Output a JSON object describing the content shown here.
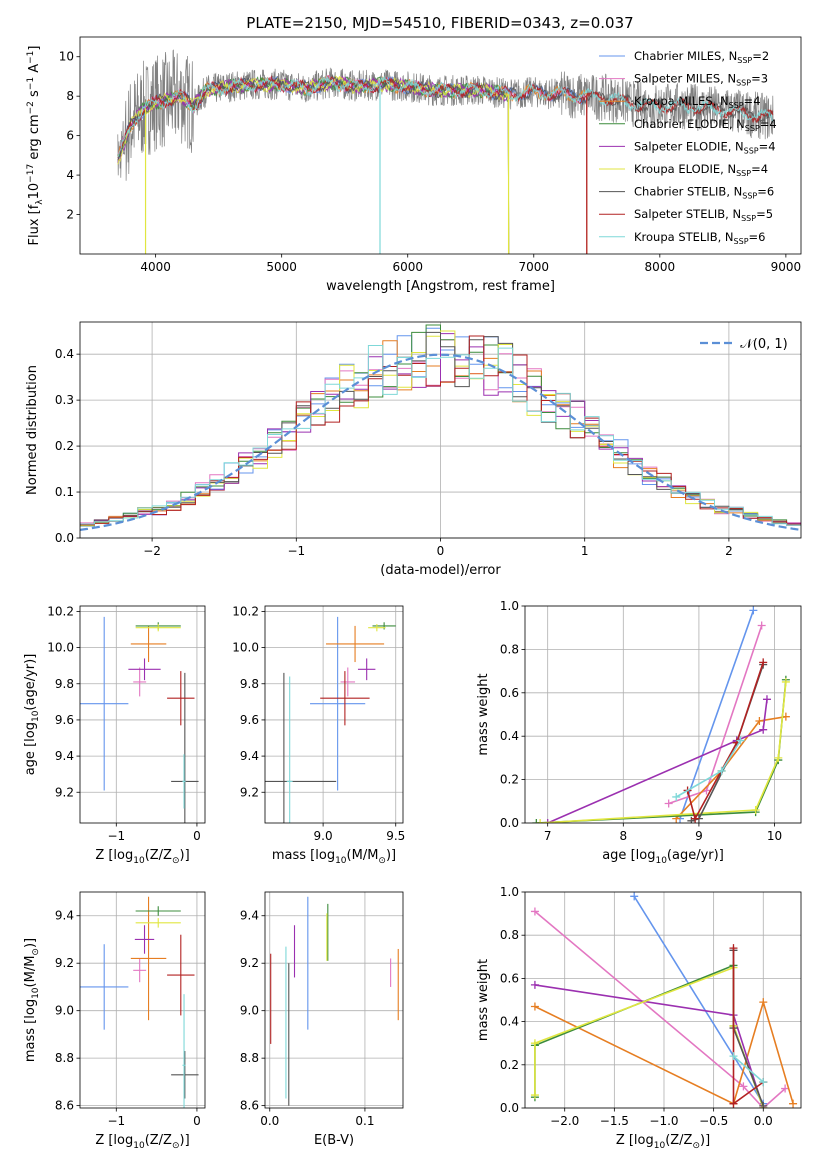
{
  "figure": {
    "title": "PLATE=2150, MJD=54510, FIBERID=0343, z=0.037"
  },
  "colors": {
    "Chabrier MILES": "#6495ed",
    "Salpeter MILES": "#e377c2",
    "Kroupa MILES": "#e67e22",
    "Chabrier ELODIE": "#3c8c3c",
    "Salpeter ELODIE": "#9b30b0",
    "Kroupa ELODIE": "#e0e640",
    "Chabrier STELIB": "#555555",
    "Salpeter STELIB": "#b22222",
    "Kroupa STELIB": "#7fd8d8",
    "spectrum": "#808080",
    "normal_curve": "#5b8fd6"
  },
  "chart_data": [
    {
      "id": "spectrum",
      "type": "line",
      "xlabel": "wavelength [Angstrom, rest frame]",
      "ylabel": "Flux [f$_\\lambda$10$^{-17}$ erg cm$^{-2}$ s$^{-1}$ A$^{-1}$]",
      "xlim": [
        3400,
        9120
      ],
      "ylim": [
        0,
        11
      ],
      "xticks": [
        4000,
        5000,
        6000,
        7000,
        8000,
        9000
      ],
      "yticks": [
        2,
        4,
        6,
        8,
        10
      ],
      "legend_position": "top-right",
      "legend": [
        {
          "name": "Chabrier MILES",
          "nssp": "2"
        },
        {
          "name": "Salpeter MILES",
          "nssp": "3"
        },
        {
          "name": "Kroupa MILES",
          "nssp": "4"
        },
        {
          "name": "Chabrier ELODIE",
          "nssp": "4"
        },
        {
          "name": "Salpeter ELODIE",
          "nssp": "4"
        },
        {
          "name": "Kroupa ELODIE",
          "nssp": "4"
        },
        {
          "name": "Chabrier STELIB",
          "nssp": "6"
        },
        {
          "name": "Salpeter STELIB",
          "nssp": "5"
        },
        {
          "name": "Kroupa STELIB",
          "nssp": "6"
        }
      ],
      "data_range": [
        3700,
        8900
      ],
      "model_continuum": [
        [
          3700,
          4.8
        ],
        [
          3800,
          6.5
        ],
        [
          3900,
          7.3
        ],
        [
          4000,
          7.7
        ],
        [
          4100,
          7.8
        ],
        [
          4200,
          8.0
        ],
        [
          4300,
          7.5
        ],
        [
          4400,
          8.3
        ],
        [
          4600,
          8.5
        ],
        [
          4800,
          8.6
        ],
        [
          5000,
          8.6
        ],
        [
          5200,
          8.4
        ],
        [
          5400,
          8.7
        ],
        [
          5600,
          8.5
        ],
        [
          5800,
          8.6
        ],
        [
          6000,
          8.5
        ],
        [
          6200,
          8.3
        ],
        [
          6400,
          8.3
        ],
        [
          6600,
          8.3
        ],
        [
          6800,
          8.1
        ],
        [
          7000,
          8.2
        ],
        [
          7200,
          8.1
        ],
        [
          7400,
          8.0
        ],
        [
          7600,
          7.9
        ],
        [
          7800,
          7.6
        ],
        [
          8000,
          7.5
        ],
        [
          8200,
          7.5
        ],
        [
          8500,
          7.3
        ],
        [
          8800,
          7.0
        ],
        [
          8900,
          6.9
        ]
      ],
      "model_end_wavelength": {
        "Chabrier MILES": 7420,
        "Salpeter MILES": 7420,
        "Kroupa MILES": 7420,
        "Chabrier ELODIE": 6800,
        "Salpeter ELODIE": 6800,
        "Kroupa ELODIE": 6800,
        "Chabrier STELIB": 8900,
        "Salpeter STELIB": 8900,
        "Kroupa STELIB": 8900
      },
      "model_dips": [
        [
          3920,
          "Kroupa ELODIE"
        ],
        [
          5780,
          "Kroupa STELIB"
        ],
        [
          6800,
          "Kroupa ELODIE"
        ],
        [
          7420,
          "Salpeter STELIB"
        ]
      ]
    },
    {
      "id": "residuals",
      "type": "histogram",
      "xlabel": "(data-model)/error",
      "ylabel": "Normed distribution",
      "xlim": [
        -2.5,
        2.5
      ],
      "ylim": [
        0,
        0.47
      ],
      "xticks": [
        -2,
        -1,
        0,
        1,
        2
      ],
      "yticks": [
        0.0,
        0.1,
        0.2,
        0.3,
        0.4
      ],
      "grid": true,
      "legend_position": "top-right",
      "curve_label": "$\\mathcal{N}(0, 1)$",
      "curve": {
        "type": "normal",
        "mean": 0,
        "sigma": 1
      },
      "bin_width": 0.1,
      "bin_range": [
        -2.5,
        2.5
      ]
    },
    {
      "id": "age-vs-Z",
      "type": "errorbar",
      "xlabel": "Z [log$_{10}$(Z/Z$_\\odot$)]",
      "ylabel": "age  [log$_{10}$(age/yr)]",
      "xlim": [
        -1.45,
        0.1
      ],
      "ylim": [
        9.03,
        10.23
      ],
      "xticks": [
        -1,
        0
      ],
      "yticks": [
        9.2,
        9.4,
        9.6,
        9.8,
        10.0,
        10.2
      ],
      "grid": true,
      "points": [
        {
          "model": "Chabrier MILES",
          "x": -1.15,
          "y": 9.69,
          "xerr": 0.3,
          "yerr": 0.48
        },
        {
          "model": "Salpeter MILES",
          "x": -0.71,
          "y": 9.81,
          "xerr": 0.08,
          "yerr": 0.08
        },
        {
          "model": "Kroupa MILES",
          "x": -0.6,
          "y": 10.02,
          "xerr": 0.22,
          "yerr": 0.1
        },
        {
          "model": "Chabrier ELODIE",
          "x": -0.48,
          "y": 10.12,
          "xerr": 0.28,
          "yerr": 0.02
        },
        {
          "model": "Salpeter ELODIE",
          "x": -0.65,
          "y": 9.88,
          "xerr": 0.2,
          "yerr": 0.06
        },
        {
          "model": "Kroupa ELODIE",
          "x": -0.48,
          "y": 10.11,
          "xerr": 0.28,
          "yerr": 0.02
        },
        {
          "model": "Chabrier STELIB",
          "x": -0.15,
          "y": 9.26,
          "xerr": 0.17,
          "yerr": 0.6
        },
        {
          "model": "Salpeter STELIB",
          "x": -0.2,
          "y": 9.72,
          "xerr": 0.17,
          "yerr": 0.15
        },
        {
          "model": "Kroupa STELIB",
          "x": -0.16,
          "y": 9.26,
          "xerr": 0.02,
          "yerr": 0.15
        }
      ]
    },
    {
      "id": "age-vs-mass",
      "type": "errorbar",
      "xlabel": "mass [log$_{10}$(M/M$_\\odot$)]",
      "ylabel": "",
      "xlim": [
        8.6,
        9.55
      ],
      "ylim": [
        9.03,
        10.23
      ],
      "xticks": [
        9.0,
        9.5
      ],
      "yticks": [
        9.2,
        9.4,
        9.6,
        9.8,
        10.0,
        10.2
      ],
      "grid": true,
      "points": [
        {
          "model": "Chabrier MILES",
          "x": 9.1,
          "y": 9.69,
          "xerr": 0.19,
          "yerr": 0.48
        },
        {
          "model": "Salpeter MILES",
          "x": 9.17,
          "y": 9.81,
          "xerr": 0.05,
          "yerr": 0.08
        },
        {
          "model": "Kroupa MILES",
          "x": 9.22,
          "y": 10.02,
          "xerr": 0.2,
          "yerr": 0.1
        },
        {
          "model": "Chabrier ELODIE",
          "x": 9.42,
          "y": 10.12,
          "xerr": 0.08,
          "yerr": 0.02
        },
        {
          "model": "Salpeter ELODIE",
          "x": 9.3,
          "y": 9.88,
          "xerr": 0.06,
          "yerr": 0.06
        },
        {
          "model": "Kroupa ELODIE",
          "x": 9.37,
          "y": 10.11,
          "xerr": 0.06,
          "yerr": 0.02
        },
        {
          "model": "Chabrier STELIB",
          "x": 8.73,
          "y": 9.26,
          "xerr": 0.36,
          "yerr": 0.6
        },
        {
          "model": "Salpeter STELIB",
          "x": 9.15,
          "y": 9.72,
          "xerr": 0.17,
          "yerr": 0.15
        },
        {
          "model": "Kroupa STELIB",
          "x": 8.77,
          "y": 9.26,
          "xerr": 0.02,
          "yerr": 0.58
        }
      ]
    },
    {
      "id": "weight-vs-age",
      "type": "line",
      "xlabel": "age  [log$_{10}$(age/yr)]",
      "ylabel": "mass weight",
      "xlim": [
        6.7,
        10.35
      ],
      "ylim": [
        0,
        1
      ],
      "xticks": [
        7,
        8,
        9,
        10
      ],
      "yticks": [
        0.0,
        0.2,
        0.4,
        0.6,
        0.8,
        1.0
      ],
      "grid": true,
      "series": [
        {
          "model": "Chabrier MILES",
          "x": [
            8.75,
            9.72
          ],
          "y": [
            0.02,
            0.98
          ]
        },
        {
          "model": "Salpeter MILES",
          "x": [
            8.6,
            9.1,
            9.83
          ],
          "y": [
            0.09,
            0.15,
            0.91
          ]
        },
        {
          "model": "Kroupa MILES",
          "x": [
            8.7,
            9.3,
            9.8,
            10.15
          ],
          "y": [
            0.02,
            0.24,
            0.47,
            0.49
          ]
        },
        {
          "model": "Chabrier ELODIE",
          "x": [
            6.85,
            9.75,
            10.05,
            10.15
          ],
          "y": [
            0.0,
            0.05,
            0.29,
            0.66
          ]
        },
        {
          "model": "Salpeter ELODIE",
          "x": [
            7.0,
            9.5,
            9.85,
            9.9
          ],
          "y": [
            0.0,
            0.38,
            0.43,
            0.57
          ]
        },
        {
          "model": "Kroupa ELODIE",
          "x": [
            6.9,
            9.75,
            10.05,
            10.15
          ],
          "y": [
            0.0,
            0.06,
            0.3,
            0.65
          ]
        },
        {
          "model": "Chabrier STELIB",
          "x": [
            8.9,
            9.0,
            9.5,
            9.85
          ],
          "y": [
            0.01,
            0.02,
            0.37,
            0.73
          ]
        },
        {
          "model": "Salpeter STELIB",
          "x": [
            8.85,
            8.95,
            9.5,
            9.85
          ],
          "y": [
            0.15,
            0.02,
            0.37,
            0.74
          ]
        },
        {
          "model": "Kroupa STELIB",
          "x": [
            8.7,
            9.3,
            9.55
          ],
          "y": [
            0.12,
            0.24,
            0.38
          ]
        }
      ]
    },
    {
      "id": "mass-vs-Z",
      "type": "errorbar",
      "xlabel": "Z [log$_{10}$(Z/Z$_\\odot$)]",
      "ylabel": "mass [log$_{10}$(M/M$_\\odot$)]",
      "xlim": [
        -1.45,
        0.1
      ],
      "ylim": [
        8.59,
        9.5
      ],
      "xticks": [
        -1,
        0
      ],
      "yticks": [
        8.6,
        8.8,
        9.0,
        9.2,
        9.4
      ],
      "grid": true,
      "points": [
        {
          "model": "Chabrier MILES",
          "x": -1.15,
          "y": 9.1,
          "xerr": 0.3,
          "yerr": 0.18
        },
        {
          "model": "Salpeter MILES",
          "x": -0.71,
          "y": 9.17,
          "xerr": 0.08,
          "yerr": 0.05
        },
        {
          "model": "Kroupa MILES",
          "x": -0.6,
          "y": 9.22,
          "xerr": 0.22,
          "yerr": 0.26
        },
        {
          "model": "Chabrier ELODIE",
          "x": -0.48,
          "y": 9.42,
          "xerr": 0.28,
          "yerr": 0.02
        },
        {
          "model": "Salpeter ELODIE",
          "x": -0.65,
          "y": 9.3,
          "xerr": 0.12,
          "yerr": 0.06
        },
        {
          "model": "Kroupa ELODIE",
          "x": -0.48,
          "y": 9.37,
          "xerr": 0.28,
          "yerr": 0.02
        },
        {
          "model": "Chabrier STELIB",
          "x": -0.15,
          "y": 8.73,
          "xerr": 0.17,
          "yerr": 0.1
        },
        {
          "model": "Salpeter STELIB",
          "x": -0.2,
          "y": 9.15,
          "xerr": 0.17,
          "yerr": 0.17
        },
        {
          "model": "Kroupa STELIB",
          "x": -0.16,
          "y": 8.77,
          "xerr": 0.02,
          "yerr": 0.3
        }
      ]
    },
    {
      "id": "mass-vs-ebv",
      "type": "errorbar",
      "xlabel": "E(B-V)",
      "ylabel": "",
      "xlim": [
        -0.005,
        0.14
      ],
      "ylim": [
        8.59,
        9.5
      ],
      "xticks": [
        0.0,
        0.1
      ],
      "yticks": [
        8.6,
        8.8,
        9.0,
        9.2,
        9.4
      ],
      "grid": true,
      "points": [
        {
          "model": "Chabrier MILES",
          "x": 0.04,
          "y": 9.2,
          "yerr": 0.28
        },
        {
          "model": "Salpeter MILES",
          "x": 0.127,
          "y": 9.16,
          "yerr": 0.06
        },
        {
          "model": "Kroupa MILES",
          "x": 0.135,
          "y": 9.11,
          "yerr": 0.15
        },
        {
          "model": "Chabrier ELODIE",
          "x": 0.061,
          "y": 9.33,
          "yerr": 0.12
        },
        {
          "model": "Salpeter ELODIE",
          "x": 0.026,
          "y": 9.25,
          "yerr": 0.11
        },
        {
          "model": "Kroupa ELODIE",
          "x": 0.06,
          "y": 9.31,
          "yerr": 0.1
        },
        {
          "model": "Chabrier STELIB",
          "x": 0.02,
          "y": 8.9,
          "yerr": 0.3
        },
        {
          "model": "Salpeter STELIB",
          "x": 0.001,
          "y": 9.05,
          "yerr": 0.19
        },
        {
          "model": "Kroupa STELIB",
          "x": 0.017,
          "y": 8.95,
          "yerr": 0.32
        }
      ]
    },
    {
      "id": "weight-vs-Z",
      "type": "line",
      "xlabel": "Z [log$_{10}$(Z/Z$_\\odot$)]",
      "ylabel": "mass weight",
      "xlim": [
        -2.4,
        0.38
      ],
      "ylim": [
        0,
        1
      ],
      "xticks": [
        -2.0,
        -1.5,
        -1.0,
        -0.5,
        0.0
      ],
      "yticks": [
        0.0,
        0.2,
        0.4,
        0.6,
        0.8,
        1.0
      ],
      "grid": true,
      "series": [
        {
          "model": "Chabrier MILES",
          "x": [
            -1.3,
            0.0
          ],
          "y": [
            0.98,
            0.02
          ]
        },
        {
          "model": "Salpeter MILES",
          "x": [
            -2.3,
            -0.2,
            0.0,
            0.22
          ],
          "y": [
            0.91,
            0.1,
            0.0,
            0.09
          ]
        },
        {
          "model": "Kroupa MILES",
          "x": [
            -2.3,
            -0.3,
            0.0,
            0.3
          ],
          "y": [
            0.47,
            0.02,
            0.49,
            0.02
          ]
        },
        {
          "model": "Chabrier ELODIE",
          "x": [
            -2.3,
            -2.3,
            -0.3,
            -0.3,
            0.0
          ],
          "y": [
            0.05,
            0.29,
            0.66,
            0.38,
            0.0
          ]
        },
        {
          "model": "Salpeter ELODIE",
          "x": [
            -2.3,
            -0.3,
            0.0
          ],
          "y": [
            0.57,
            0.43,
            0.0
          ]
        },
        {
          "model": "Kroupa ELODIE",
          "x": [
            -2.3,
            -2.3,
            -0.3,
            -0.3,
            0.0
          ],
          "y": [
            0.06,
            0.3,
            0.65,
            0.38,
            0.0
          ]
        },
        {
          "model": "Chabrier STELIB",
          "x": [
            -0.3,
            -0.3,
            0.0
          ],
          "y": [
            0.73,
            0.37,
            0.01
          ]
        },
        {
          "model": "Salpeter STELIB",
          "x": [
            -0.3,
            -0.3,
            0.0
          ],
          "y": [
            0.74,
            0.02,
            0.12
          ]
        },
        {
          "model": "Kroupa STELIB",
          "x": [
            -0.3,
            0.0
          ],
          "y": [
            0.24,
            0.12
          ]
        }
      ]
    }
  ]
}
